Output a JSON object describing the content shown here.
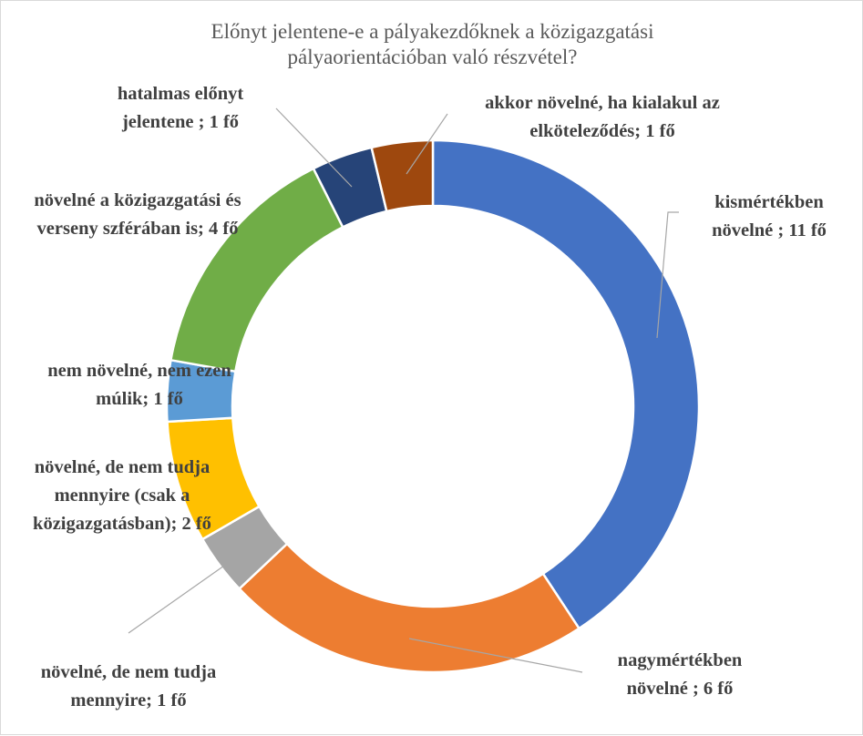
{
  "chart_data": {
    "type": "donut",
    "title_lines": [
      "Előnyt jelentene-e a pályakezdőknek a közigazgatási",
      "pályaorientációban való részvétel?"
    ],
    "unit": "fő",
    "slices": [
      {
        "label": "kismértékben növelné ; 11 fő",
        "lines": [
          "kismértékben",
          "növelné ; 11 fő"
        ],
        "value": 11,
        "color": "#4472C4"
      },
      {
        "label": "nagymértékben növelné ; 6 fő",
        "lines": [
          "nagymértékben",
          "növelné ; 6 fő"
        ],
        "value": 6,
        "color": "#ED7D31"
      },
      {
        "label": "növelné, de nem tudja mennyire; 1 fő",
        "lines": [
          "növelné, de nem tudja",
          "mennyire; 1 fő"
        ],
        "value": 1,
        "color": "#A5A5A5"
      },
      {
        "label": "növelné, de nem tudja mennyire (csak a közigazgatásban); 2 fő",
        "lines": [
          "növelné, de nem tudja",
          "mennyire (csak a",
          "közigazgatásban); 2 fő"
        ],
        "value": 2,
        "color": "#FFC000"
      },
      {
        "label": "nem növelné, nem ezen múlik; 1 fő",
        "lines": [
          "nem növelné, nem ezen",
          "múlik; 1 fő"
        ],
        "value": 1,
        "color": "#5B9BD5"
      },
      {
        "label": "növelné a közigazgatási és verseny szférában is; 4 fő",
        "lines": [
          "növelné a közigazgatási és",
          "verseny szférában is; 4 fő"
        ],
        "value": 4,
        "color": "#70AD47"
      },
      {
        "label": "hatalmas előnyt jelentene ; 1 fő",
        "lines": [
          "hatalmas előnyt",
          "jelentene ; 1 fő"
        ],
        "value": 1,
        "color": "#264478"
      },
      {
        "label": "akkor növelné, ha kialakul az elköteleződés; 1 fő",
        "lines": [
          "akkor növelné, ha kialakul az",
          "elköteleződés; 1 fő"
        ],
        "value": 1,
        "color": "#9E480E"
      }
    ]
  }
}
